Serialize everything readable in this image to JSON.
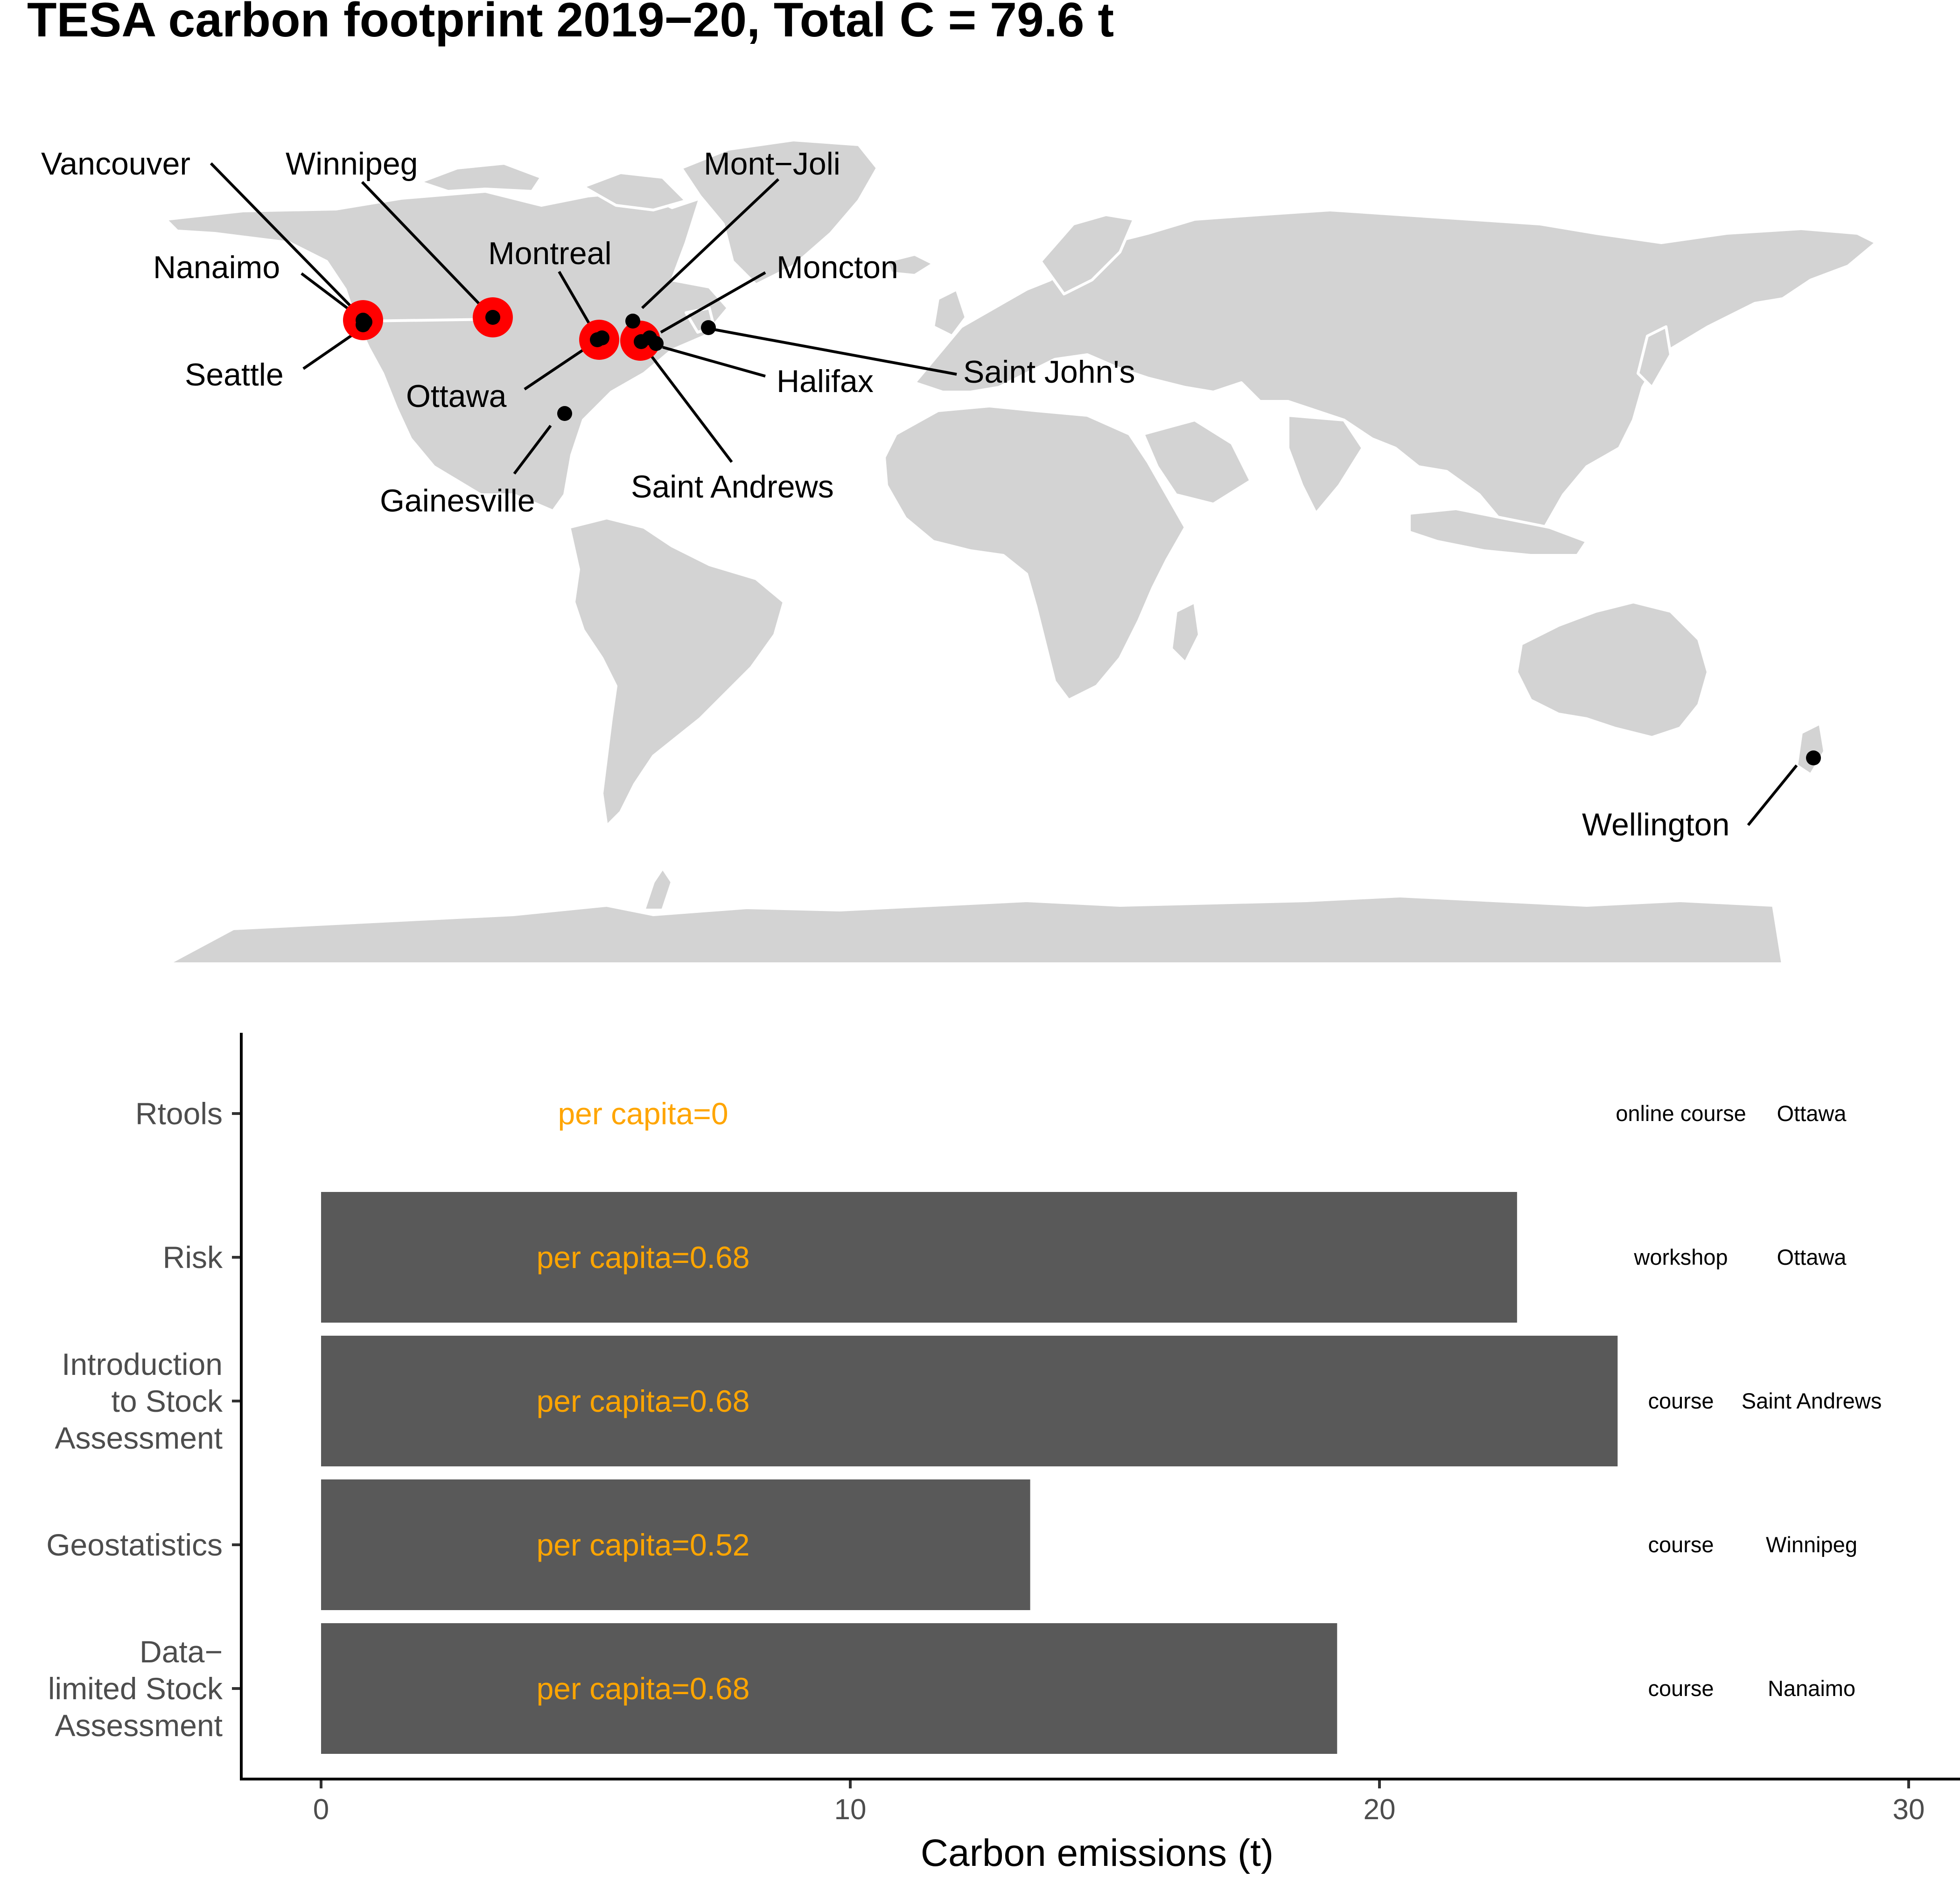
{
  "title": "TESA carbon footprint 2019−20, Total C = 79.6 t",
  "map": {
    "cities": [
      {
        "name": "Vancouver",
        "highlight": true
      },
      {
        "name": "Winnipeg",
        "highlight": true
      },
      {
        "name": "Mont−Joli",
        "highlight": false
      },
      {
        "name": "Nanaimo",
        "highlight": true
      },
      {
        "name": "Montreal",
        "highlight": false
      },
      {
        "name": "Moncton",
        "highlight": false
      },
      {
        "name": "Seattle",
        "highlight": false
      },
      {
        "name": "Ottawa",
        "highlight": true
      },
      {
        "name": "Halifax",
        "highlight": false
      },
      {
        "name": "Saint John's",
        "highlight": false
      },
      {
        "name": "Saint Andrews",
        "highlight": true
      },
      {
        "name": "Gainesville",
        "highlight": false
      },
      {
        "name": "Wellington",
        "highlight": false
      }
    ],
    "colors": {
      "land": "#d3d3d3",
      "highlight": "#ff0000",
      "point": "#000000"
    }
  },
  "chart_data": {
    "type": "bar",
    "orientation": "horizontal",
    "categories": [
      "Rtools",
      "Risk",
      "Introduction to Stock Assessment",
      "Geostatistics",
      "Data−limited Stock Assessment"
    ],
    "category_lines": [
      [
        "Rtools"
      ],
      [
        "Risk"
      ],
      [
        "Introduction",
        "to Stock",
        "Assessment"
      ],
      [
        "Geostatistics"
      ],
      [
        "Data−",
        "limited Stock",
        "Assessment"
      ]
    ],
    "values": [
      0,
      22.6,
      24.5,
      13.4,
      19.2
    ],
    "per_capita": [
      "per capita=0",
      "per capita=0.68",
      "per capita=0.68",
      "per capita=0.52",
      "per capita=0.68"
    ],
    "event_type": [
      "online course",
      "workshop",
      "course",
      "course",
      "course"
    ],
    "location": [
      "Ottawa",
      "Ottawa",
      "Saint Andrews",
      "Winnipeg",
      "Nanaimo"
    ],
    "xlabel": "Carbon emissions (t)",
    "xlim": [
      -1.5,
      30.8
    ],
    "xticks": [
      0,
      10,
      20,
      30
    ],
    "colors": {
      "bar": "#595959",
      "per_capita_text": "#ffa500"
    }
  }
}
